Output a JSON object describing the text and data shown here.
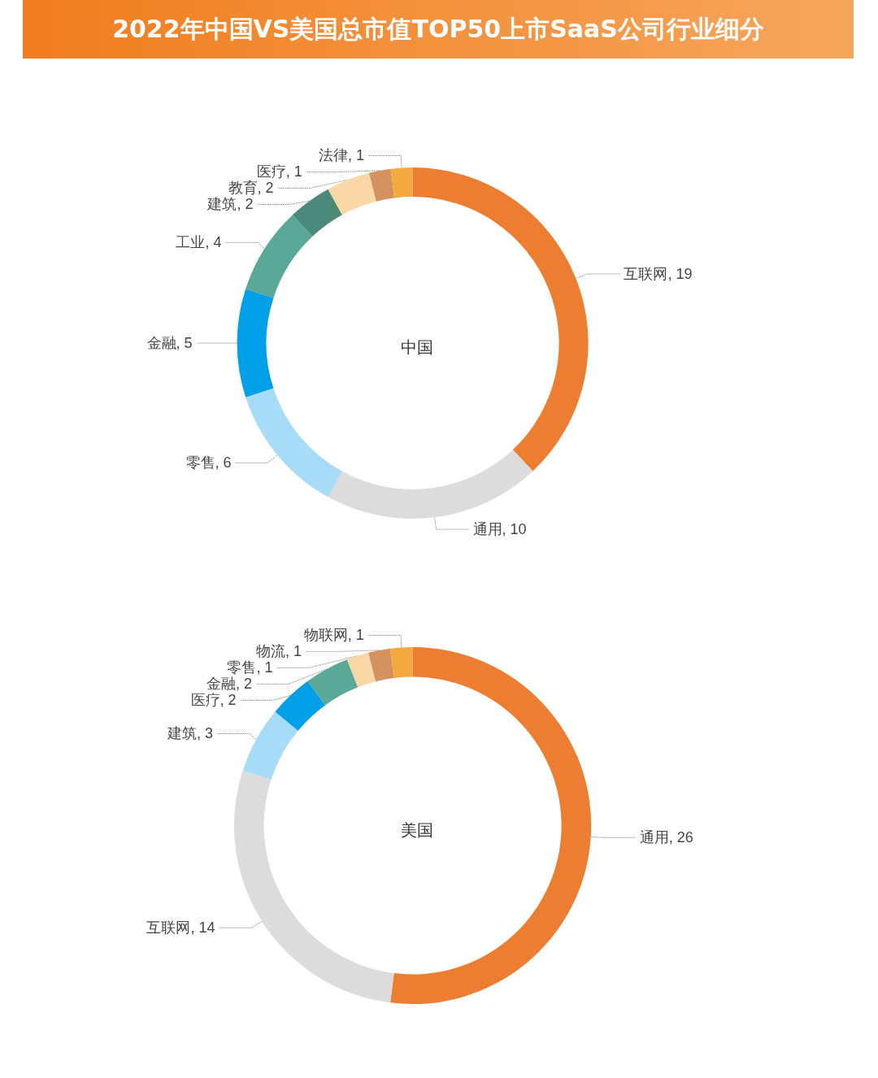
{
  "chart_data": [
    {
      "type": "donut",
      "title": "2022年中国VS美国总市值TOP50上市SaaS公司行业细分",
      "annotations": [
        "中国"
      ],
      "categories": [
        "互联网",
        "通用",
        "零售",
        "金融",
        "工业",
        "建筑",
        "教育",
        "医疗",
        "法律"
      ],
      "values": [
        19,
        10,
        6,
        5,
        4,
        2,
        2,
        1,
        1
      ],
      "value_labels": [
        ", 19",
        ", 10",
        ", 6",
        ", 5",
        ", 4",
        ", 2",
        ", 2",
        ", 1",
        ", 1"
      ],
      "colors": [
        "#ed7d31",
        "#dcdcdc",
        "#a6dcf7",
        "#00a0e9",
        "#5aa897",
        "#4a8a7a",
        "#f9d7a7",
        "#d4935e",
        "#f4a840"
      ]
    },
    {
      "type": "donut",
      "annotations": [
        "美国"
      ],
      "categories": [
        "通用",
        "互联网",
        "建筑",
        "医疗",
        "金融",
        "零售",
        "物流",
        "物联网"
      ],
      "values": [
        26,
        14,
        3,
        2,
        2,
        1,
        1,
        1
      ],
      "value_labels": [
        ", 26",
        ", 14",
        ", 3",
        ", 2",
        ", 2",
        ", 1",
        ", 1",
        ", 1"
      ],
      "colors": [
        "#ed7d31",
        "#dcdcdc",
        "#a6dcf7",
        "#00a0e9",
        "#5aa897",
        "#f9d7a7",
        "#d4935e",
        "#f4a840"
      ]
    }
  ]
}
